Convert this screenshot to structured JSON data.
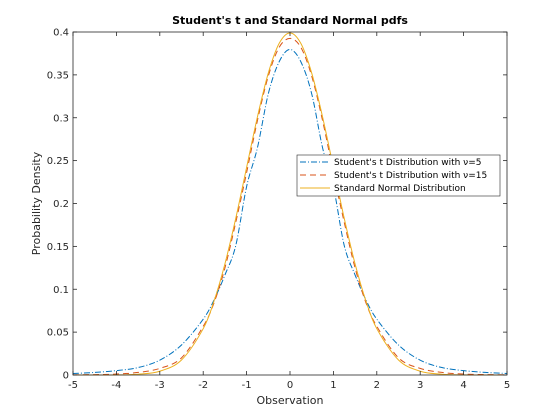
{
  "chart_data": {
    "type": "line",
    "title": "Student's t and Standard Normal pdfs",
    "xlabel": "Observation",
    "ylabel": "Probability Density",
    "xlim": [
      -5,
      5
    ],
    "ylim": [
      0,
      0.4
    ],
    "xticks": [
      -5,
      -4,
      -3,
      -2,
      -1,
      0,
      1,
      2,
      3,
      4,
      5
    ],
    "yticks": [
      0,
      0.05,
      0.1,
      0.15,
      0.2,
      0.25,
      0.3,
      0.35,
      0.4
    ],
    "xtick_labels": [
      "-5",
      "-4",
      "-3",
      "-2",
      "-1",
      "0",
      "1",
      "2",
      "3",
      "4",
      "5"
    ],
    "ytick_labels": [
      "0",
      "0.05",
      "0.1",
      "0.15",
      "0.2",
      "0.25",
      "0.3",
      "0.35",
      "0.4"
    ],
    "grid": false,
    "legend_position": "right",
    "x": [
      -5,
      -4.5,
      -4,
      -3.5,
      -3,
      -2.5,
      -2,
      -1.75,
      -1.5,
      -1.25,
      -1,
      -0.75,
      -0.5,
      -0.25,
      0,
      0.25,
      0.5,
      0.75,
      1,
      1.25,
      1.5,
      1.75,
      2,
      2.5,
      3,
      3.5,
      4,
      4.5,
      5
    ],
    "series": [
      {
        "name": "Student's t Distribution with ν=5",
        "color": "#0072bd",
        "style": "dashdot",
        "values": [
          0.0018,
          0.003,
          0.0051,
          0.0087,
          0.0173,
          0.035,
          0.0651,
          0.0875,
          0.1166,
          0.1509,
          0.2197,
          0.2651,
          0.3279,
          0.3653,
          0.3796,
          0.3653,
          0.3279,
          0.2651,
          0.2197,
          0.1509,
          0.1166,
          0.0875,
          0.0651,
          0.035,
          0.0173,
          0.0087,
          0.0051,
          0.003,
          0.0018
        ]
      },
      {
        "name": "Student's t Distribution with ν=15",
        "color": "#d95319",
        "style": "dashed",
        "values": [
          0.0002,
          0.0005,
          0.0011,
          0.003,
          0.0077,
          0.02,
          0.0567,
          0.0842,
          0.1247,
          0.1779,
          0.236,
          0.2968,
          0.3486,
          0.3821,
          0.3925,
          0.3821,
          0.3486,
          0.2968,
          0.236,
          0.1779,
          0.1247,
          0.0842,
          0.0567,
          0.02,
          0.0077,
          0.003,
          0.0011,
          0.0005,
          0.0002
        ]
      },
      {
        "name": "Standard Normal Distribution",
        "color": "#edb120",
        "style": "solid",
        "values": [
          0.0,
          0.0,
          0.0001,
          0.0009,
          0.0044,
          0.0175,
          0.054,
          0.0863,
          0.1295,
          0.1826,
          0.242,
          0.3011,
          0.3521,
          0.3867,
          0.3989,
          0.3867,
          0.3521,
          0.3011,
          0.242,
          0.1826,
          0.1295,
          0.0863,
          0.054,
          0.0175,
          0.0044,
          0.0009,
          0.0001,
          0.0,
          0.0
        ]
      }
    ]
  }
}
